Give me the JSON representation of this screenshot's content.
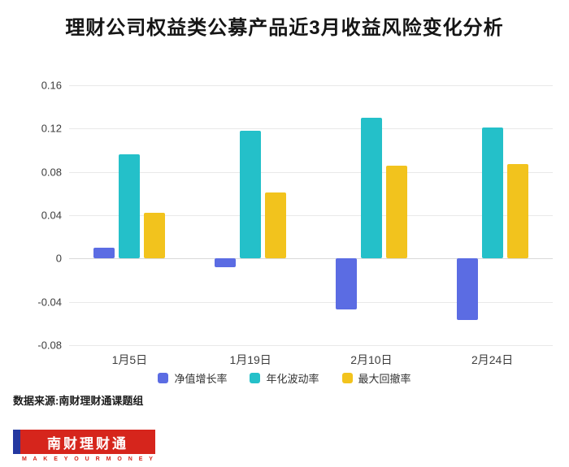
{
  "title": "理财公司权益类公募产品近3月收益风险变化分析",
  "source": "数据来源:南财理财通课题组",
  "logo": {
    "text": "南财理财通",
    "tagline": "M A K E  Y O U R  M O N E Y"
  },
  "chart_data": {
    "type": "bar",
    "title": "理财公司权益类公募产品近3月收益风险变化分析",
    "categories": [
      "1月5日",
      "1月19日",
      "2月10日",
      "2月24日"
    ],
    "series": [
      {
        "name": "净值增长率",
        "color": "#5b6ce3",
        "values": [
          0.01,
          -0.008,
          -0.047,
          -0.057
        ]
      },
      {
        "name": "年化波动率",
        "color": "#24c0c9",
        "values": [
          0.096,
          0.118,
          0.13,
          0.121
        ]
      },
      {
        "name": "最大回撤率",
        "color": "#f2c31d",
        "values": [
          0.042,
          0.061,
          0.086,
          0.087
        ]
      }
    ],
    "xlabel": "",
    "ylabel": "",
    "ylim": [
      -0.08,
      0.16
    ],
    "yticks": [
      {
        "v": 0.16,
        "label": "0.16"
      },
      {
        "v": 0.12,
        "label": "0.12"
      },
      {
        "v": 0.08,
        "label": "0.08"
      },
      {
        "v": 0.04,
        "label": "0.04"
      },
      {
        "v": 0,
        "label": "0"
      },
      {
        "v": -0.04,
        "label": "-0.04"
      },
      {
        "v": -0.08,
        "label": "-0.08"
      }
    ],
    "grid": true,
    "legend_position": "bottom"
  }
}
